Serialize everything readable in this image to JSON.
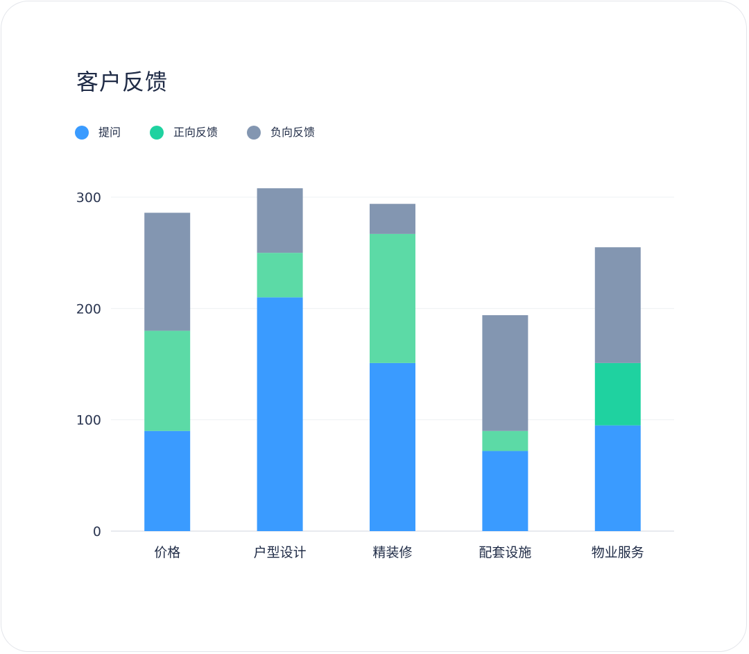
{
  "chart_data": {
    "type": "bar",
    "stacked": true,
    "title": "客户反馈",
    "xlabel": "",
    "ylabel": "",
    "categories": [
      "价格",
      "户型设计",
      "精装修",
      "配套设施",
      "物业服务"
    ],
    "series": [
      {
        "name": "提问",
        "color": "#3a9bff",
        "values": [
          90,
          210,
          151,
          72,
          95
        ]
      },
      {
        "name": "正向反馈",
        "color": "#5cdaa6",
        "values": [
          90,
          40,
          116,
          18,
          56
        ]
      },
      {
        "name": "负向反馈",
        "color": "#8396b1",
        "values": [
          106,
          58,
          27,
          104,
          104
        ]
      }
    ],
    "bar_colors_override": [
      null,
      null,
      null,
      null,
      {
        "正向反馈": "#1fd2a0"
      }
    ],
    "legend_colors": [
      "#3a9bff",
      "#1fd2a0",
      "#8396b1"
    ],
    "ylim": [
      0,
      300
    ],
    "yticks": [
      0,
      100,
      200,
      300
    ],
    "grid": true,
    "legend_position": "top-left"
  }
}
